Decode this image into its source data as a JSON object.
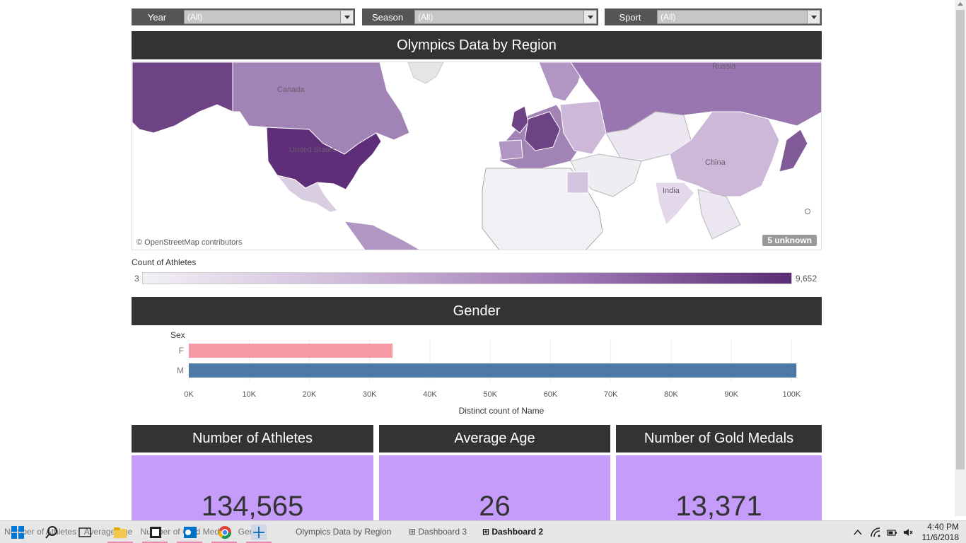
{
  "filters": [
    {
      "label": "Year",
      "value": "(All)"
    },
    {
      "label": "Season",
      "value": "(All)"
    },
    {
      "label": "Sport",
      "value": "(All)"
    }
  ],
  "map_section": {
    "title": "Olympics Data by Region",
    "labels": [
      "Russia",
      "Canada",
      "United States",
      "China",
      "India"
    ],
    "attribution": "© OpenStreetMap contributors",
    "unknown_badge": "5 unknown"
  },
  "legend": {
    "title": "Count of Athletes",
    "min": "3",
    "max": "9,652"
  },
  "gender_section": {
    "title": "Gender"
  },
  "chart_data": {
    "type": "bar",
    "orientation": "horizontal",
    "categories": [
      "F",
      "M"
    ],
    "values": [
      33800,
      100800
    ],
    "category_axis_title": "Sex",
    "xlabel": "Distinct count of Name",
    "xlim": [
      0,
      105000
    ],
    "x_ticks": [
      0,
      10000,
      20000,
      30000,
      40000,
      50000,
      60000,
      70000,
      80000,
      90000,
      100000
    ],
    "x_tick_labels": [
      "0K",
      "10K",
      "20K",
      "30K",
      "40K",
      "50K",
      "60K",
      "70K",
      "80K",
      "90K",
      "100K"
    ],
    "colors": [
      "#f79aa8",
      "#4e79a7"
    ],
    "grid": true
  },
  "kpis": [
    {
      "title": "Number of Athletes",
      "value": "134,565"
    },
    {
      "title": "Average Age",
      "value": "26"
    },
    {
      "title": "Number of Gold Medals",
      "value": "13,371"
    }
  ],
  "taskbar": {
    "background_text": [
      "Number of Athletes",
      "Average Age",
      "Number of Gold Medals",
      "Gender"
    ],
    "tabs": [
      "Olympics Data by Region",
      "Dashboard 3",
      "Dashboard 2"
    ],
    "time": "4:40 PM",
    "date": "11/6/2018"
  },
  "colors": {
    "header": "#333333",
    "kpi_bg": "#c59cfa",
    "map_dark": "#5a2d74"
  }
}
